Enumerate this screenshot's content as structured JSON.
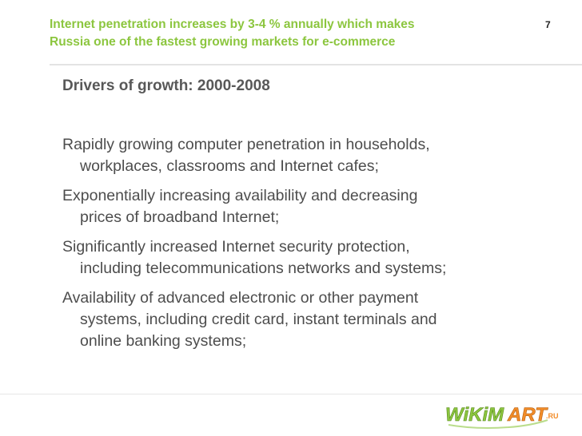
{
  "slide": {
    "title_lines": [
      "Internet penetration increases by 3-4 % annually which makes",
      "Russia one of the fastest growing markets for e-commerce"
    ],
    "page_number": "7",
    "subheading": "Drivers of growth: 2000-2008",
    "drivers": [
      [
        "Rapidly growing computer penetration in households,",
        "workplaces, classrooms and Internet cafes;"
      ],
      [
        "Exponentially increasing availability and decreasing",
        "prices of broadband Internet;"
      ],
      [
        "Significantly increased Internet security protection,",
        "including telecommunications networks and systems;"
      ],
      [
        "Availability of advanced electronic or other payment",
        "systems, including credit card, instant terminals and",
        "online banking systems;"
      ]
    ],
    "logo_text": "WiKiMART.RU"
  },
  "colors": {
    "title": "#8cc63f",
    "body_text": "#4d4d4d",
    "logo_green": "#8cc63f",
    "logo_orange": "#f28c28"
  }
}
